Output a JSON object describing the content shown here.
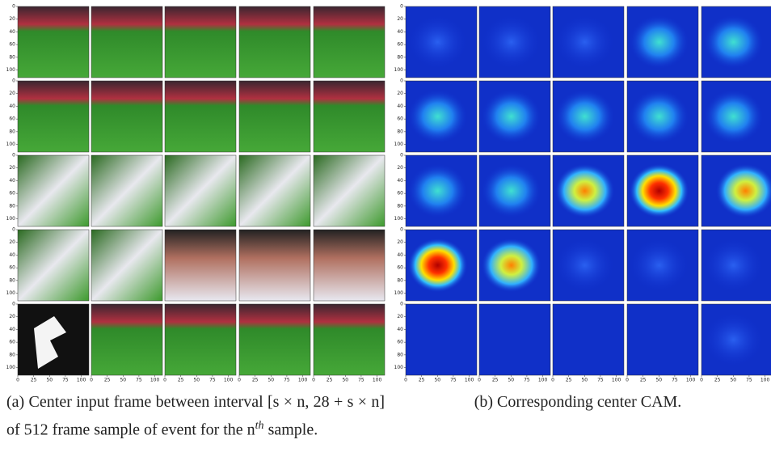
{
  "figure": {
    "y_ticks": [
      0,
      20,
      40,
      60,
      80,
      100
    ],
    "x_ticks": [
      0,
      25,
      50,
      75,
      100
    ],
    "image_extent": 112,
    "caption_a": {
      "label": "(a)",
      "text": "Center input frame between interval [s × n, 28 + s × n] of 512 frame sample of event for the n",
      "superscript": "th",
      "text_end": "sample."
    },
    "caption_b": {
      "label": "(b)",
      "text": "Corresponding center CAM."
    }
  }
}
